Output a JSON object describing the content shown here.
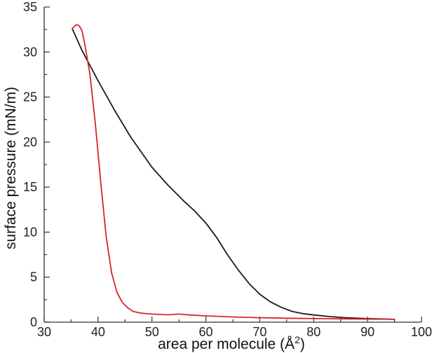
{
  "chart_data": {
    "type": "line",
    "title": "",
    "xlabel": "area per molecule (Å",
    "xlabel_sup": "2",
    "xlabel_tail": ")",
    "ylabel": "surface pressure (mN/m)",
    "xlim": [
      30,
      100
    ],
    "ylim": [
      0,
      35
    ],
    "xticks": [
      30,
      40,
      50,
      60,
      70,
      80,
      90,
      100
    ],
    "yticks": [
      0,
      5,
      10,
      15,
      20,
      25,
      30,
      35
    ],
    "grid": false,
    "legend": "none",
    "series": [
      {
        "name": "black",
        "color": "#1a1a1a",
        "x": [
          35.2,
          37,
          40,
          43,
          46,
          50,
          53,
          56,
          58,
          60,
          62,
          64,
          66,
          68,
          70,
          72,
          74,
          76,
          78,
          80,
          83,
          86,
          90,
          95
        ],
        "y": [
          32.6,
          30.2,
          26.8,
          23.6,
          20.6,
          17.2,
          15.2,
          13.4,
          12.3,
          11,
          9.4,
          7.5,
          5.8,
          4.3,
          3.1,
          2.25,
          1.65,
          1.2,
          0.95,
          0.8,
          0.62,
          0.5,
          0.4,
          0.32
        ]
      },
      {
        "name": "red",
        "color": "#d8232f",
        "x": [
          95,
          90,
          85,
          80,
          75,
          70,
          65,
          60,
          57,
          55,
          53,
          50,
          48,
          46.5,
          45.5,
          44.5,
          43.5,
          42.5,
          41.5,
          40.5,
          39.5,
          38.5,
          37.5,
          37,
          36.5,
          36.2,
          35.9,
          35.5,
          35.2
        ],
        "y": [
          0.32,
          0.34,
          0.37,
          0.4,
          0.44,
          0.5,
          0.58,
          0.7,
          0.8,
          0.9,
          0.82,
          0.9,
          1.0,
          1.2,
          1.6,
          2.2,
          3.3,
          5.5,
          9.5,
          15.5,
          22,
          27.5,
          31.0,
          32.4,
          32.9,
          33.0,
          33.0,
          32.8,
          32.6
        ]
      }
    ]
  }
}
